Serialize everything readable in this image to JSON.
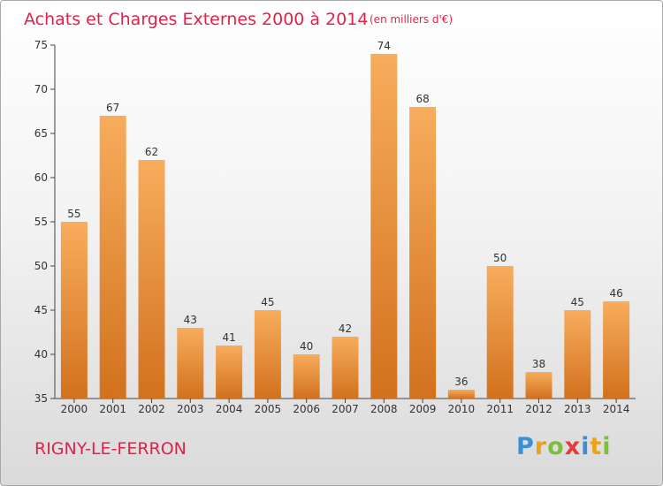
{
  "chart_data": {
    "type": "bar",
    "title": "Achats et Charges Externes 2000 à 2014",
    "subtitle": "(en milliers d'€)",
    "categories": [
      "2000",
      "2001",
      "2002",
      "2003",
      "2004",
      "2005",
      "2006",
      "2007",
      "2008",
      "2009",
      "2010",
      "2011",
      "2012",
      "2013",
      "2014"
    ],
    "values": [
      55,
      67,
      62,
      43,
      41,
      45,
      40,
      42,
      74,
      68,
      36,
      50,
      38,
      45,
      46
    ],
    "ylim": [
      35,
      75
    ],
    "yticks": [
      35,
      40,
      45,
      50,
      55,
      60,
      65,
      70,
      75
    ],
    "grid": false,
    "bar_color": "#f09a3e"
  },
  "commune": "RIGNY-LE-FERRON",
  "logo": {
    "letters": [
      "P",
      "r",
      "o",
      "x",
      "i",
      "t",
      "i"
    ],
    "colors": [
      "#3a8fd6",
      "#e9a21a",
      "#7bbf3a",
      "#e23b3b",
      "#3a8fd6",
      "#e9a21a",
      "#7bbf3a"
    ]
  }
}
